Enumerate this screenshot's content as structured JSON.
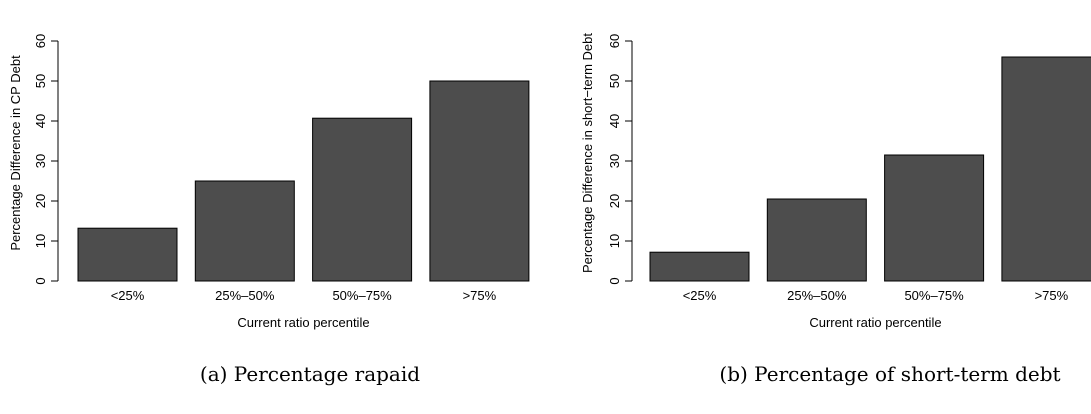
{
  "chart_data": [
    {
      "type": "bar",
      "categories": [
        "<25%",
        "25%–50%",
        "50%–75%",
        ">75%"
      ],
      "values": [
        13.2,
        25,
        40.7,
        50
      ],
      "xlabel": "Current ratio percentile",
      "ylabel": "Percentage Difference in CP Debt",
      "ylim": [
        0,
        60
      ],
      "yticks": [
        0,
        10,
        20,
        30,
        40,
        50,
        60
      ],
      "bar_color": "#4d4d4d",
      "grid": false,
      "caption": "(a) Percentage rapaid"
    },
    {
      "type": "bar",
      "categories": [
        "<25%",
        "25%–50%",
        "50%–75%",
        ">75%"
      ],
      "values": [
        7.2,
        20.5,
        31.5,
        56
      ],
      "xlabel": "Current ratio percentile",
      "ylabel": "Percentage Difference in short−term Debt",
      "ylim": [
        0,
        60
      ],
      "yticks": [
        0,
        10,
        20,
        30,
        40,
        50,
        60
      ],
      "bar_color": "#4d4d4d",
      "grid": false,
      "caption": "(b) Percentage of short-term debt"
    }
  ]
}
